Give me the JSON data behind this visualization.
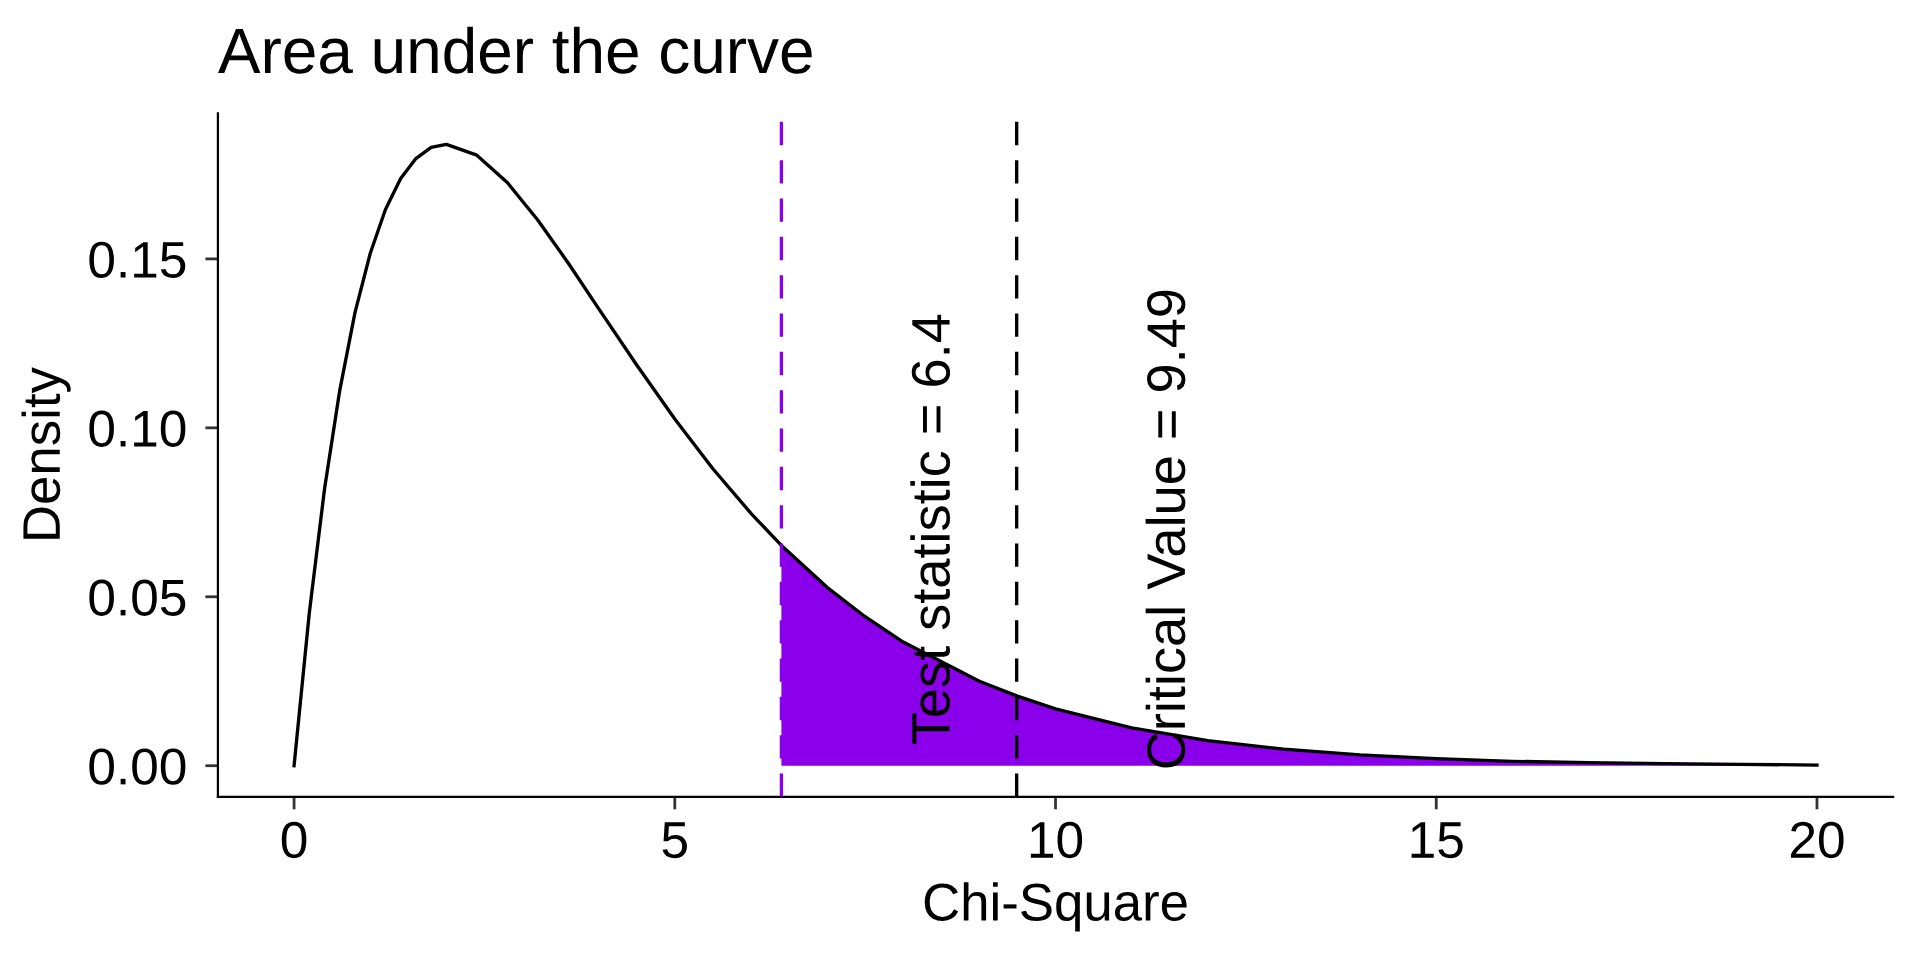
{
  "chart_data": {
    "type": "line",
    "title": "Area under the curve",
    "xlabel": "Chi-Square",
    "ylabel": "Density",
    "series": [
      {
        "type": "area",
        "color": "#8a00ea",
        "x": [
          6.4,
          7,
          7.5,
          8,
          9,
          9.5,
          10,
          11,
          12,
          13,
          14,
          15,
          16,
          17,
          18,
          19,
          20
        ],
        "values": [
          0.0652,
          0.0528,
          0.0441,
          0.0366,
          0.025,
          0.0206,
          0.0168,
          0.0112,
          0.0074,
          0.0049,
          0.0032,
          0.0021,
          0.0013,
          0.0009,
          0.0006,
          0.0004,
          0.0002
        ]
      },
      {
        "color": "#000000",
        "line_style": "solid",
        "x": [
          0,
          0.2,
          0.4,
          0.6,
          0.8,
          1.0,
          1.2,
          1.4,
          1.6,
          1.8,
          2.0,
          2.4,
          2.8,
          3.2,
          3.6,
          4.0,
          4.5,
          5.0,
          5.5,
          6.0,
          6.4,
          7,
          7.5,
          8,
          9,
          9.5,
          10,
          11,
          12,
          13,
          14,
          15,
          16,
          17,
          18,
          19,
          20
        ],
        "values": [
          0,
          0.0452,
          0.0819,
          0.1111,
          0.1341,
          0.1516,
          0.1646,
          0.1738,
          0.1797,
          0.183,
          0.1839,
          0.1807,
          0.1726,
          0.1615,
          0.1488,
          0.1353,
          0.1186,
          0.1026,
          0.0879,
          0.0747,
          0.0652,
          0.0528,
          0.0441,
          0.0366,
          0.025,
          0.0206,
          0.0168,
          0.0112,
          0.0074,
          0.0049,
          0.0032,
          0.0021,
          0.0013,
          0.0009,
          0.0006,
          0.0004,
          0.0002
        ]
      }
    ],
    "ref_lines": [
      {
        "axis": "x",
        "value": 6.4,
        "color": "#8a00ea",
        "line_style": "dashed"
      },
      {
        "axis": "x",
        "value": 9.49,
        "color": "#000000",
        "line_style": "dashed"
      }
    ],
    "annotations": [
      "Test statistic = 6.4",
      "Critical Value = 9.49"
    ],
    "xlim": [
      -1,
      21
    ],
    "ylim": [
      -0.0092,
      0.1931
    ],
    "xticks": [
      0,
      5,
      10,
      15,
      20
    ],
    "yticks": [
      {
        "value": 0,
        "label": "0.00"
      },
      {
        "value": 0.05,
        "label": "0.05"
      },
      {
        "value": 0.1,
        "label": "0.10"
      },
      {
        "value": 0.15,
        "label": "0.15"
      }
    ],
    "grid": false,
    "legend": false,
    "marker": "none"
  }
}
